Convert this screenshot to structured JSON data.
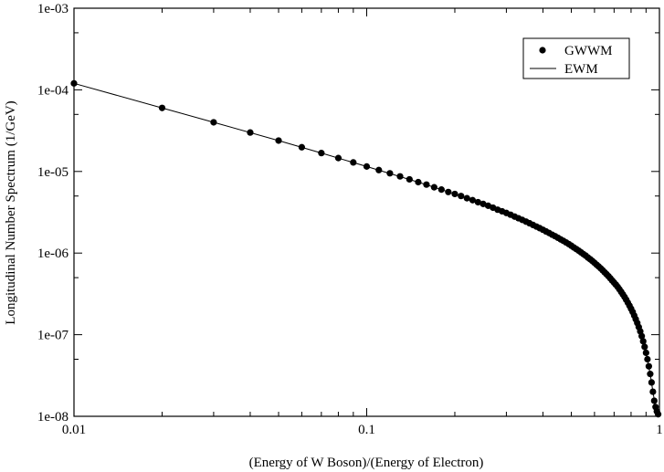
{
  "chart_data": {
    "type": "scatter",
    "title": "",
    "xlabel": "(Energy of W Boson)/(Energy of Electron)",
    "ylabel": "Longitudinal Number Spectrum (1/GeV)",
    "xscale": "log",
    "yscale": "log",
    "xlim": [
      0.01,
      1
    ],
    "ylim": [
      1e-08,
      0.001
    ],
    "x_ticks": [
      0.01,
      0.1,
      1
    ],
    "x_tick_labels": [
      "0.01",
      "0.1",
      "1"
    ],
    "y_ticks": [
      1e-08,
      1e-07,
      1e-06,
      1e-05,
      0.0001,
      0.001
    ],
    "y_tick_labels": [
      "1e-08",
      "1e-07",
      "1e-06",
      "1e-05",
      "1e-04",
      "1e-03"
    ],
    "grid": false,
    "legend_position": "top-right",
    "series": [
      {
        "name": "GWWM",
        "style": "markers",
        "marker": "filled-circle",
        "color": "#000000",
        "x": [
          0.01,
          0.02,
          0.03,
          0.04,
          0.05,
          0.06,
          0.07,
          0.08,
          0.09,
          0.1,
          0.11,
          0.12,
          0.13,
          0.14,
          0.15,
          0.16,
          0.17,
          0.18,
          0.19,
          0.2,
          0.21,
          0.22,
          0.23,
          0.24,
          0.25,
          0.26,
          0.27,
          0.28,
          0.29,
          0.3,
          0.31,
          0.32,
          0.33,
          0.34,
          0.35,
          0.36,
          0.37,
          0.38,
          0.39,
          0.4,
          0.41,
          0.42,
          0.43,
          0.44,
          0.45,
          0.46,
          0.47,
          0.48,
          0.49,
          0.5,
          0.51,
          0.52,
          0.53,
          0.54,
          0.55,
          0.56,
          0.57,
          0.58,
          0.59,
          0.6,
          0.61,
          0.62,
          0.63,
          0.64,
          0.65,
          0.66,
          0.67,
          0.68,
          0.69,
          0.7,
          0.71,
          0.72,
          0.73,
          0.74,
          0.75,
          0.76,
          0.77,
          0.78,
          0.79,
          0.8,
          0.81,
          0.82,
          0.83,
          0.84,
          0.85,
          0.86,
          0.87,
          0.88,
          0.89,
          0.9,
          0.91,
          0.92,
          0.93,
          0.94,
          0.95,
          0.96,
          0.97,
          0.98,
          0.99
        ],
        "y": [
          0.00012,
          6e-05,
          4e-05,
          3e-05,
          2.39e-05,
          1.98e-05,
          1.68e-05,
          1.46e-05,
          1.29e-05,
          1.15e-05,
          1.04e-05,
          9.5e-06,
          8.7e-06,
          8e-06,
          7.4e-06,
          6.9e-06,
          6.4e-06,
          6e-06,
          5.6e-06,
          5.3e-06,
          5e-06,
          4.7e-06,
          4.45e-06,
          4.2e-06,
          4e-06,
          3.8e-06,
          3.6e-06,
          3.4e-06,
          3.25e-06,
          3.1e-06,
          2.95e-06,
          2.8e-06,
          2.67e-06,
          2.55e-06,
          2.43e-06,
          2.32e-06,
          2.21e-06,
          2.11e-06,
          2.02e-06,
          1.93e-06,
          1.84e-06,
          1.76e-06,
          1.68e-06,
          1.61e-06,
          1.54e-06,
          1.47e-06,
          1.41e-06,
          1.35e-06,
          1.29e-06,
          1.23e-06,
          1.17e-06,
          1.12e-06,
          1.07e-06,
          1.02e-06,
          9.7e-07,
          9.3e-07,
          8.8e-07,
          8.4e-07,
          8e-07,
          7.6e-07,
          7.2e-07,
          6.85e-07,
          6.5e-07,
          6.15e-07,
          5.8e-07,
          5.5e-07,
          5.2e-07,
          4.9e-07,
          4.6e-07,
          4.35e-07,
          4.1e-07,
          3.85e-07,
          3.6e-07,
          3.35e-07,
          3.12e-07,
          2.9e-07,
          2.68e-07,
          2.47e-07,
          2.27e-07,
          2.08e-07,
          1.9e-07,
          1.72e-07,
          1.55e-07,
          1.39e-07,
          1.24e-07,
          1.1e-07,
          9.6e-08,
          8.3e-08,
          7.1e-08,
          6e-08,
          5e-08,
          4.1e-08,
          3.3e-08,
          2.6e-08,
          2e-08,
          1.55e-08,
          1.3e-08,
          1.15e-08,
          1.06e-08
        ]
      },
      {
        "name": "EWM",
        "style": "line",
        "color": "#000000",
        "x": [
          0.01,
          0.02,
          0.03,
          0.05,
          0.07,
          0.1,
          0.15,
          0.2,
          0.25,
          0.3,
          0.35,
          0.4,
          0.45,
          0.5,
          0.55,
          0.6,
          0.65,
          0.7,
          0.75,
          0.8,
          0.85,
          0.9,
          0.93,
          0.95,
          0.97,
          0.98,
          0.99
        ],
        "y": [
          0.00012,
          6e-05,
          4e-05,
          2.39e-05,
          1.68e-05,
          1.15e-05,
          7.4e-06,
          5.3e-06,
          4e-06,
          3.1e-06,
          2.43e-06,
          1.93e-06,
          1.54e-06,
          1.23e-06,
          9.7e-07,
          7.6e-07,
          5.8e-07,
          4.35e-07,
          3.12e-07,
          2.08e-07,
          1.24e-07,
          6e-08,
          3.3e-08,
          2e-08,
          1.3e-08,
          1.15e-08,
          1.06e-08
        ]
      }
    ]
  }
}
